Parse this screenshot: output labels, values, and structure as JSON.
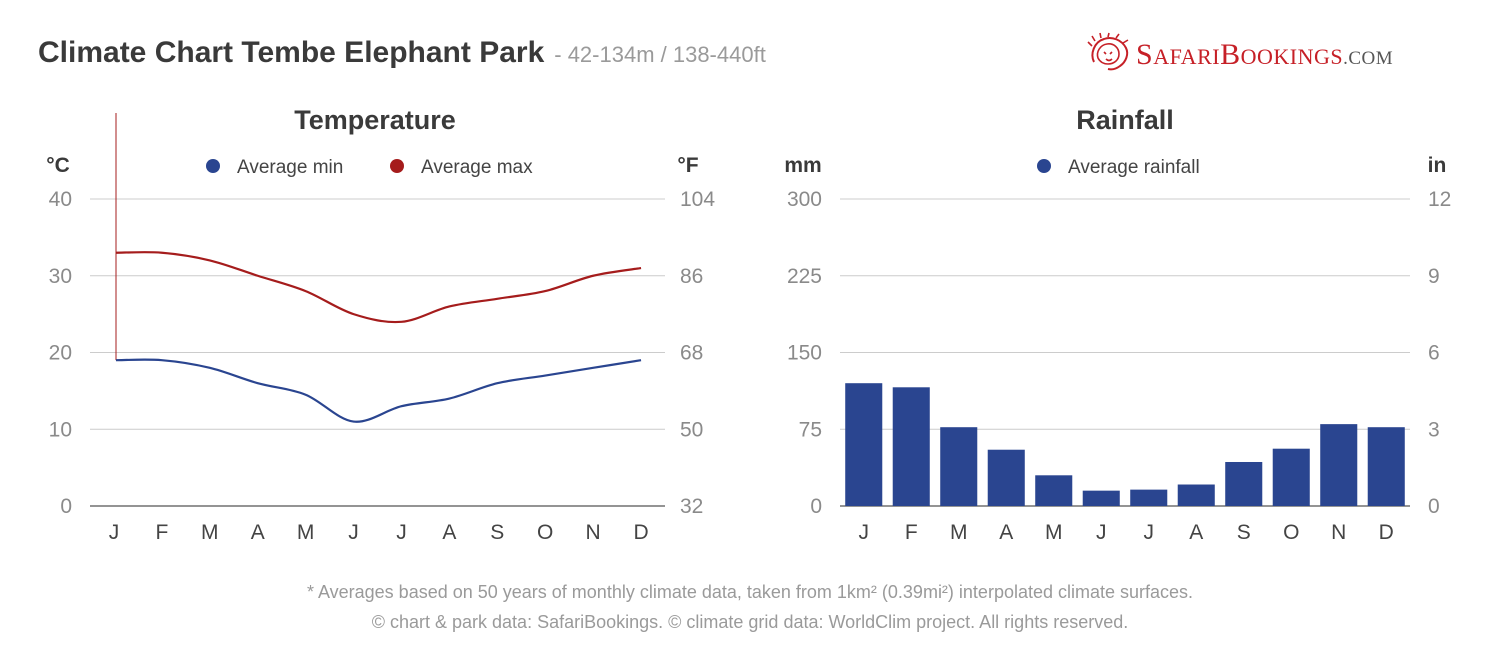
{
  "header": {
    "title": "Climate Chart Tembe Elephant Park",
    "subtitle": "- 42-134m / 138-440ft"
  },
  "logo": {
    "text_s": "S",
    "text_afari": "AFARI",
    "text_b": "B",
    "text_ookings": "OOKINGS",
    "text_dot_com": ".COM"
  },
  "footer": {
    "note": "* Averages based on 50 years of monthly climate data, taken from 1km² (0.39mi²) interpolated climate surfaces.",
    "credits": "© chart & park data: SafariBookings. © climate grid data: WorldClim project. All rights reserved."
  },
  "colors": {
    "min": "#2a4590",
    "max": "#a51c1c",
    "rain": "#2a4590",
    "grid": "#cccccc",
    "axis_text": "#8a8a8a",
    "title_text": "#3a3a3a"
  },
  "chart_data": [
    {
      "type": "line",
      "title": "Temperature",
      "ylabel_left": "°C",
      "ylabel_right": "°F",
      "categories": [
        "J",
        "F",
        "M",
        "A",
        "M",
        "J",
        "J",
        "A",
        "S",
        "O",
        "N",
        "D"
      ],
      "ylim": [
        0,
        40
      ],
      "yticks_left": [
        "40",
        "30",
        "20",
        "10",
        "0"
      ],
      "yticks_right": [
        "104",
        "86",
        "68",
        "50",
        "32"
      ],
      "grid": true,
      "legend_position": "top-center",
      "series": [
        {
          "name": "Average min",
          "color": "#2a4590",
          "values": [
            19,
            19,
            18,
            16,
            14.5,
            11,
            13,
            14,
            16,
            17,
            18,
            19
          ]
        },
        {
          "name": "Average max",
          "color": "#a51c1c",
          "values": [
            33,
            33,
            32,
            30,
            28,
            25,
            24,
            26,
            27,
            28,
            30,
            31
          ]
        }
      ]
    },
    {
      "type": "bar",
      "title": "Rainfall",
      "ylabel_left": "mm",
      "ylabel_right": "in",
      "categories": [
        "J",
        "F",
        "M",
        "A",
        "M",
        "J",
        "J",
        "A",
        "S",
        "O",
        "N",
        "D"
      ],
      "ylim": [
        0,
        300
      ],
      "yticks_left": [
        "300",
        "225",
        "150",
        "75",
        "0"
      ],
      "yticks_right": [
        "12",
        "9",
        "6",
        "3",
        "0"
      ],
      "grid": true,
      "legend_position": "top-center",
      "series": [
        {
          "name": "Average rainfall",
          "color": "#2a4590",
          "values": [
            120,
            116,
            77,
            55,
            30,
            15,
            16,
            21,
            43,
            56,
            80,
            77
          ]
        }
      ]
    }
  ]
}
